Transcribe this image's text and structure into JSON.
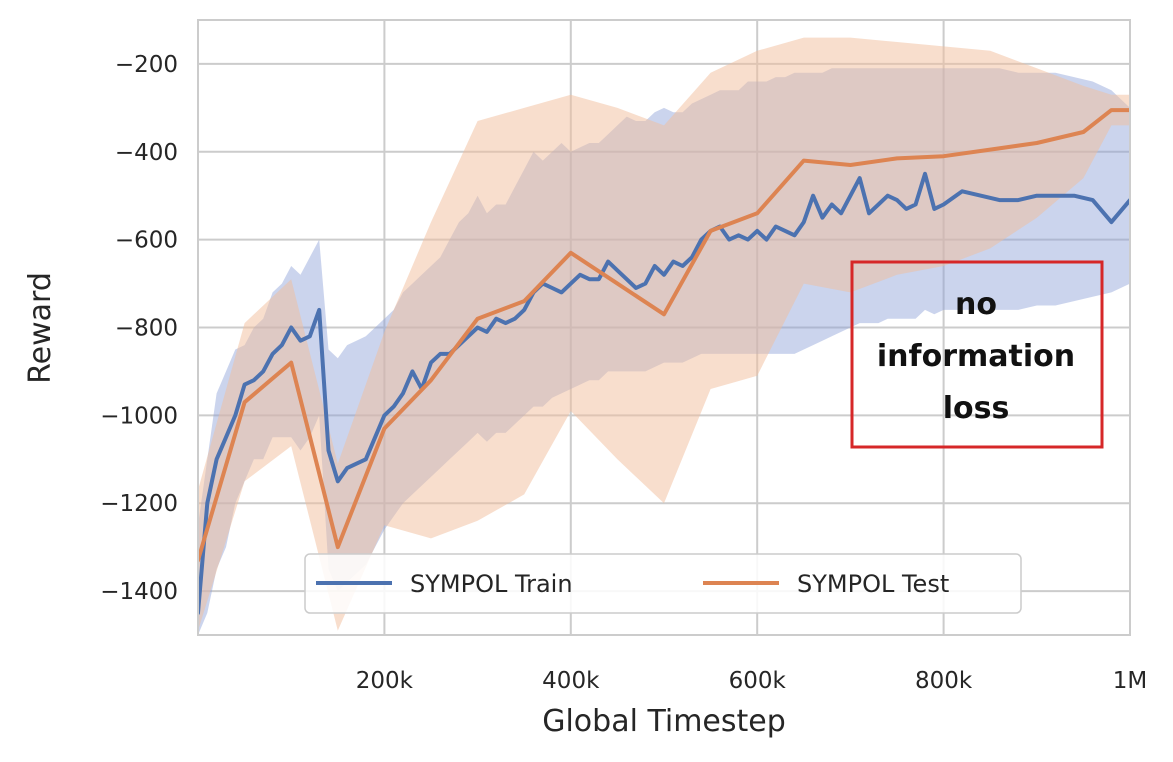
{
  "chart_data": {
    "type": "line",
    "title": "",
    "xlabel": "Global Timestep",
    "ylabel": "Reward",
    "xlim": [
      0,
      1000000
    ],
    "ylim": [
      -1500,
      -100
    ],
    "grid": true,
    "legend_position": "bottom-center",
    "x_ticks": [
      {
        "value": 200000,
        "label": "200k"
      },
      {
        "value": 400000,
        "label": "400k"
      },
      {
        "value": 600000,
        "label": "600k"
      },
      {
        "value": 800000,
        "label": "800k"
      },
      {
        "value": 1000000,
        "label": "1M"
      }
    ],
    "y_ticks": [
      {
        "value": -200,
        "label": "−200"
      },
      {
        "value": -400,
        "label": "−400"
      },
      {
        "value": -600,
        "label": "−600"
      },
      {
        "value": -800,
        "label": "−800"
      },
      {
        "value": -1000,
        "label": "−1000"
      },
      {
        "value": -1200,
        "label": "−1200"
      },
      {
        "value": -1400,
        "label": "−1400"
      }
    ],
    "series": [
      {
        "name": "SYMPOL Train",
        "color": "#4c72b0",
        "band_color": "#8c9fd8",
        "x": [
          0,
          10000,
          20000,
          30000,
          40000,
          50000,
          60000,
          70000,
          80000,
          90000,
          100000,
          110000,
          120000,
          130000,
          140000,
          150000,
          160000,
          170000,
          180000,
          190000,
          200000,
          210000,
          220000,
          230000,
          240000,
          250000,
          260000,
          270000,
          280000,
          290000,
          300000,
          310000,
          320000,
          330000,
          340000,
          350000,
          360000,
          370000,
          380000,
          390000,
          400000,
          410000,
          420000,
          430000,
          440000,
          450000,
          460000,
          470000,
          480000,
          490000,
          500000,
          510000,
          520000,
          530000,
          540000,
          550000,
          560000,
          570000,
          580000,
          590000,
          600000,
          610000,
          620000,
          630000,
          640000,
          650000,
          660000,
          670000,
          680000,
          690000,
          700000,
          710000,
          720000,
          730000,
          740000,
          750000,
          760000,
          770000,
          780000,
          790000,
          800000,
          820000,
          840000,
          860000,
          880000,
          900000,
          920000,
          940000,
          960000,
          980000,
          1000000
        ],
        "values": [
          -1450,
          -1200,
          -1100,
          -1050,
          -1000,
          -930,
          -920,
          -900,
          -860,
          -840,
          -800,
          -830,
          -820,
          -760,
          -1080,
          -1150,
          -1120,
          -1110,
          -1100,
          -1050,
          -1000,
          -980,
          -950,
          -900,
          -940,
          -880,
          -860,
          -860,
          -840,
          -820,
          -800,
          -810,
          -780,
          -790,
          -780,
          -760,
          -720,
          -700,
          -710,
          -720,
          -700,
          -680,
          -690,
          -690,
          -650,
          -670,
          -690,
          -710,
          -700,
          -660,
          -680,
          -650,
          -660,
          -640,
          -600,
          -580,
          -570,
          -600,
          -590,
          -600,
          -580,
          -600,
          -570,
          -580,
          -590,
          -560,
          -500,
          -550,
          -520,
          -540,
          -500,
          -460,
          -540,
          -520,
          -500,
          -510,
          -530,
          -520,
          -450,
          -530,
          -520,
          -490,
          -500,
          -510,
          -510,
          -500,
          -500,
          -500,
          -510,
          -560,
          -510
        ],
        "upper": [
          -1250,
          -1100,
          -950,
          -900,
          -850,
          -840,
          -800,
          -780,
          -720,
          -700,
          -660,
          -680,
          -640,
          -600,
          -850,
          -870,
          -840,
          -830,
          -820,
          -800,
          -780,
          -760,
          -720,
          -700,
          -680,
          -660,
          -640,
          -600,
          -560,
          -540,
          -500,
          -540,
          -520,
          -520,
          -480,
          -440,
          -400,
          -420,
          -400,
          -380,
          -400,
          -390,
          -380,
          -380,
          -360,
          -340,
          -320,
          -330,
          -330,
          -310,
          -300,
          -310,
          -310,
          -290,
          -280,
          -270,
          -260,
          -260,
          -260,
          -240,
          -240,
          -240,
          -230,
          -230,
          -220,
          -220,
          -220,
          -220,
          -210,
          -210,
          -210,
          -210,
          -210,
          -210,
          -210,
          -210,
          -210,
          -210,
          -210,
          -210,
          -210,
          -210,
          -210,
          -210,
          -220,
          -220,
          -220,
          -230,
          -240,
          -260,
          -300
        ],
        "lower": [
          -1500,
          -1450,
          -1350,
          -1300,
          -1200,
          -1150,
          -1100,
          -1100,
          -1050,
          -1050,
          -1050,
          -1080,
          -1050,
          -1000,
          -1350,
          -1400,
          -1380,
          -1360,
          -1340,
          -1300,
          -1260,
          -1230,
          -1200,
          -1180,
          -1160,
          -1140,
          -1120,
          -1100,
          -1080,
          -1060,
          -1040,
          -1060,
          -1040,
          -1040,
          -1020,
          -1000,
          -980,
          -980,
          -960,
          -950,
          -940,
          -930,
          -920,
          -920,
          -900,
          -900,
          -900,
          -900,
          -900,
          -890,
          -880,
          -880,
          -880,
          -870,
          -860,
          -860,
          -860,
          -860,
          -860,
          -860,
          -860,
          -860,
          -860,
          -860,
          -860,
          -850,
          -840,
          -830,
          -820,
          -810,
          -800,
          -790,
          -790,
          -790,
          -780,
          -780,
          -780,
          -780,
          -760,
          -770,
          -760,
          -760,
          -760,
          -760,
          -760,
          -750,
          -750,
          -740,
          -730,
          -720,
          -700
        ]
      },
      {
        "name": "SYMPOL Test",
        "color": "#dd8452",
        "band_color": "#f2bd9c",
        "x": [
          0,
          50000,
          100000,
          150000,
          200000,
          250000,
          300000,
          350000,
          400000,
          450000,
          500000,
          550000,
          600000,
          650000,
          700000,
          750000,
          800000,
          850000,
          900000,
          950000,
          980000,
          1000000
        ],
        "values": [
          -1330,
          -970,
          -880,
          -1300,
          -1030,
          -920,
          -780,
          -740,
          -630,
          -700,
          -770,
          -580,
          -540,
          -420,
          -430,
          -415,
          -410,
          -395,
          -380,
          -355,
          -305,
          -305
        ],
        "upper": [
          -1170,
          -790,
          -690,
          -1110,
          -810,
          -560,
          -330,
          -300,
          -270,
          -300,
          -340,
          -220,
          -170,
          -140,
          -140,
          -150,
          -160,
          -170,
          -210,
          -250,
          -270,
          -270
        ],
        "lower": [
          -1490,
          -1150,
          -1070,
          -1490,
          -1250,
          -1280,
          -1240,
          -1180,
          -990,
          -1100,
          -1200,
          -940,
          -910,
          -700,
          -720,
          -680,
          -660,
          -620,
          -550,
          -460,
          -340,
          -340
        ]
      }
    ],
    "annotation": {
      "lines": [
        "no",
        "information",
        "loss"
      ],
      "box_color": "#d62728"
    }
  }
}
